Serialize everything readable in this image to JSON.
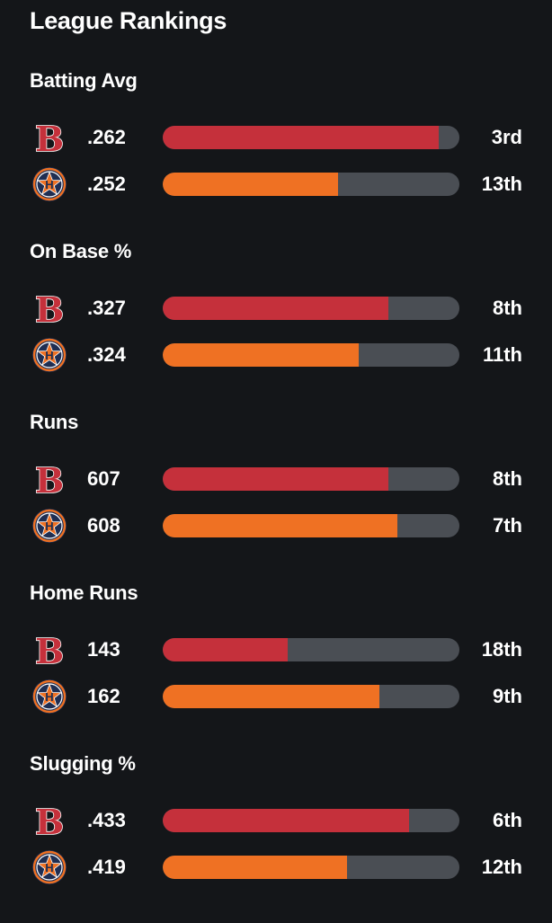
{
  "title": "League Rankings",
  "colors": {
    "red_sox": "#c5303b",
    "astros": "#ef7123",
    "track": "#4a4e54",
    "background": "#141619"
  },
  "teams": [
    {
      "key": "red_sox",
      "icon": "red-sox-logo-icon"
    },
    {
      "key": "astros",
      "icon": "astros-logo-icon"
    }
  ],
  "categories": [
    {
      "label": "Batting Avg",
      "rows": [
        {
          "team": "red_sox",
          "value": ".262",
          "rank": "3rd",
          "fill_pct": 93
        },
        {
          "team": "astros",
          "value": ".252",
          "rank": "13th",
          "fill_pct": 59
        }
      ]
    },
    {
      "label": "On Base %",
      "rows": [
        {
          "team": "red_sox",
          "value": ".327",
          "rank": "8th",
          "fill_pct": 76
        },
        {
          "team": "astros",
          "value": ".324",
          "rank": "11th",
          "fill_pct": 66
        }
      ]
    },
    {
      "label": "Runs",
      "rows": [
        {
          "team": "red_sox",
          "value": "607",
          "rank": "8th",
          "fill_pct": 76
        },
        {
          "team": "astros",
          "value": "608",
          "rank": "7th",
          "fill_pct": 79
        }
      ]
    },
    {
      "label": "Home Runs",
      "rows": [
        {
          "team": "red_sox",
          "value": "143",
          "rank": "18th",
          "fill_pct": 42
        },
        {
          "team": "astros",
          "value": "162",
          "rank": "9th",
          "fill_pct": 73
        }
      ]
    },
    {
      "label": "Slugging %",
      "rows": [
        {
          "team": "red_sox",
          "value": ".433",
          "rank": "6th",
          "fill_pct": 83
        },
        {
          "team": "astros",
          "value": ".419",
          "rank": "12th",
          "fill_pct": 62
        }
      ]
    }
  ]
}
